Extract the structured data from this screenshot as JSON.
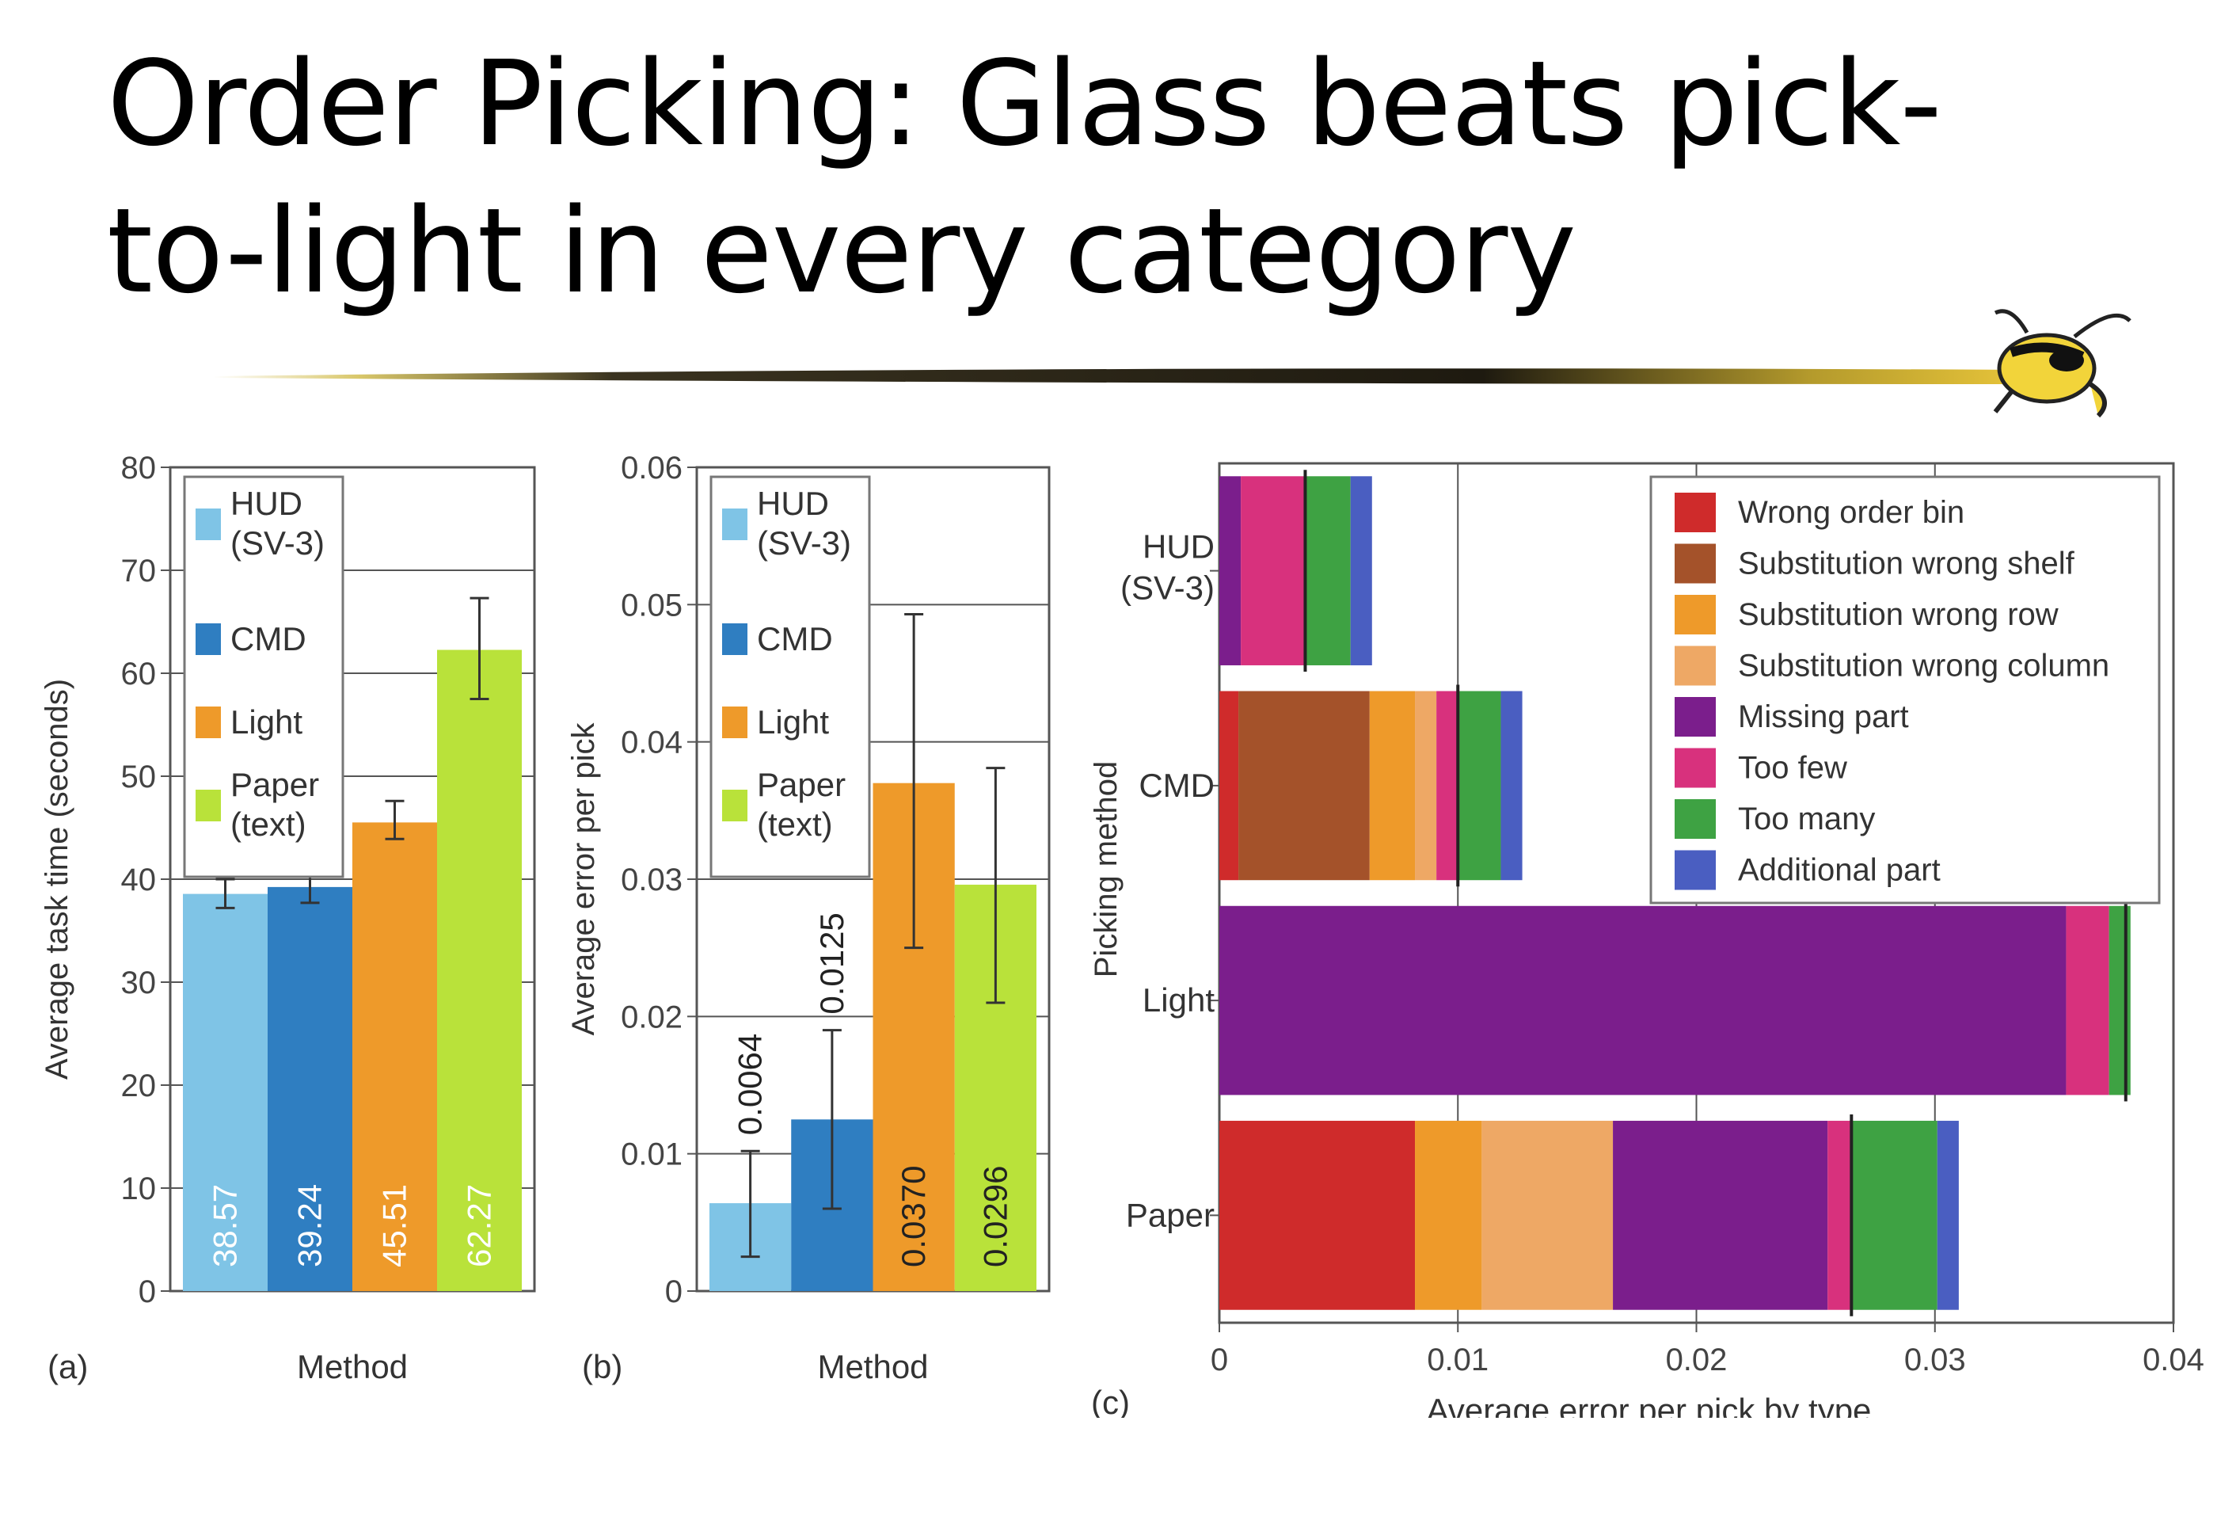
{
  "slide": {
    "title": "Order Picking: Glass beats pick-to-light in every category"
  },
  "colors": {
    "hud": "#7fc4e6",
    "cmd": "#2f7ec1",
    "light": "#ee9a2a",
    "paper": "#b9e23a",
    "wrong_order_bin": "#cf2b2b",
    "substitution_wrong_shelf": "#a4522a",
    "substitution_wrong_row": "#ee9a2a",
    "substitution_wrong_column": "#eea865",
    "missing_part": "#7b1e8c",
    "too_few": "#d8317d",
    "too_many": "#3ea243",
    "additional_part": "#4a5ec1"
  },
  "chart_data": [
    {
      "type": "bar",
      "panel_label": "(a)",
      "xlabel": "Method",
      "ylabel": "Average task time (seconds)",
      "ylim": [
        0,
        80
      ],
      "yticks": [
        "0",
        "10",
        "20",
        "30",
        "40",
        "50",
        "60",
        "70",
        "80"
      ],
      "categories": [
        "HUD (SV-3)",
        "CMD",
        "Light",
        "Paper (text)"
      ],
      "values": [
        38.57,
        39.24,
        45.51,
        62.27
      ],
      "value_labels": [
        "38.57",
        "39.24",
        "45.51",
        "62.27"
      ],
      "error_low": [
        37.2,
        37.7,
        43.9,
        57.5
      ],
      "error_high": [
        40.0,
        40.7,
        47.6,
        67.3
      ],
      "legend": [
        "HUD\n(SV-3)",
        "CMD",
        "Light",
        "Paper\n(text)"
      ],
      "legend_position": "top-left",
      "grid": true
    },
    {
      "type": "bar",
      "panel_label": "(b)",
      "xlabel": "Method",
      "ylabel": "Average error per pick",
      "ylim": [
        0,
        0.06
      ],
      "yticks": [
        "0",
        "0.01",
        "0.02",
        "0.03",
        "0.04",
        "0.05",
        "0.06"
      ],
      "categories": [
        "HUD (SV-3)",
        "CMD",
        "Light",
        "Paper (text)"
      ],
      "values": [
        0.0064,
        0.0125,
        0.037,
        0.0296
      ],
      "value_labels": [
        "0.0064",
        "0.0125",
        "0.0370",
        "0.0296"
      ],
      "error_low": [
        0.0025,
        0.006,
        0.025,
        0.021
      ],
      "error_high": [
        0.0102,
        0.019,
        0.0493,
        0.0381
      ],
      "legend": [
        "HUD\n(SV-3)",
        "CMD",
        "Light",
        "Paper\n(text)"
      ],
      "legend_position": "top-left",
      "grid": true
    },
    {
      "type": "bar",
      "orientation": "horizontal",
      "stacked": true,
      "panel_label": "(c)",
      "xlabel": "Average error per pick by type",
      "ylabel": "Picking method",
      "xlim": [
        0,
        0.04
      ],
      "xticks": [
        "0",
        "0.01",
        "0.02",
        "0.03",
        "0.04"
      ],
      "categories": [
        "HUD\n(SV-3)",
        "CMD",
        "Light",
        "Paper"
      ],
      "series": [
        {
          "name": "Wrong order bin",
          "values": [
            0,
            0.0008,
            0,
            0.0082
          ]
        },
        {
          "name": "Substitution wrong shelf",
          "values": [
            0,
            0.0055,
            0,
            0
          ]
        },
        {
          "name": "Substitution wrong row",
          "values": [
            0,
            0.0019,
            0,
            0.0028
          ]
        },
        {
          "name": "Substitution wrong column",
          "values": [
            0,
            0.0009,
            0,
            0.0055
          ]
        },
        {
          "name": "Missing part",
          "values": [
            0.0009,
            0,
            0.0355,
            0.009
          ]
        },
        {
          "name": "Too few",
          "values": [
            0.0027,
            0.0009,
            0.0018,
            0.001
          ]
        },
        {
          "name": "Too many",
          "values": [
            0.0019,
            0.0018,
            0.0009,
            0.0036
          ]
        },
        {
          "name": "Additional part",
          "values": [
            0.0009,
            0.0009,
            0,
            0.0009
          ]
        }
      ],
      "markers": [
        0.0036,
        0.01,
        0.038,
        0.0265
      ],
      "legend_position": "top-right",
      "grid": true
    }
  ]
}
